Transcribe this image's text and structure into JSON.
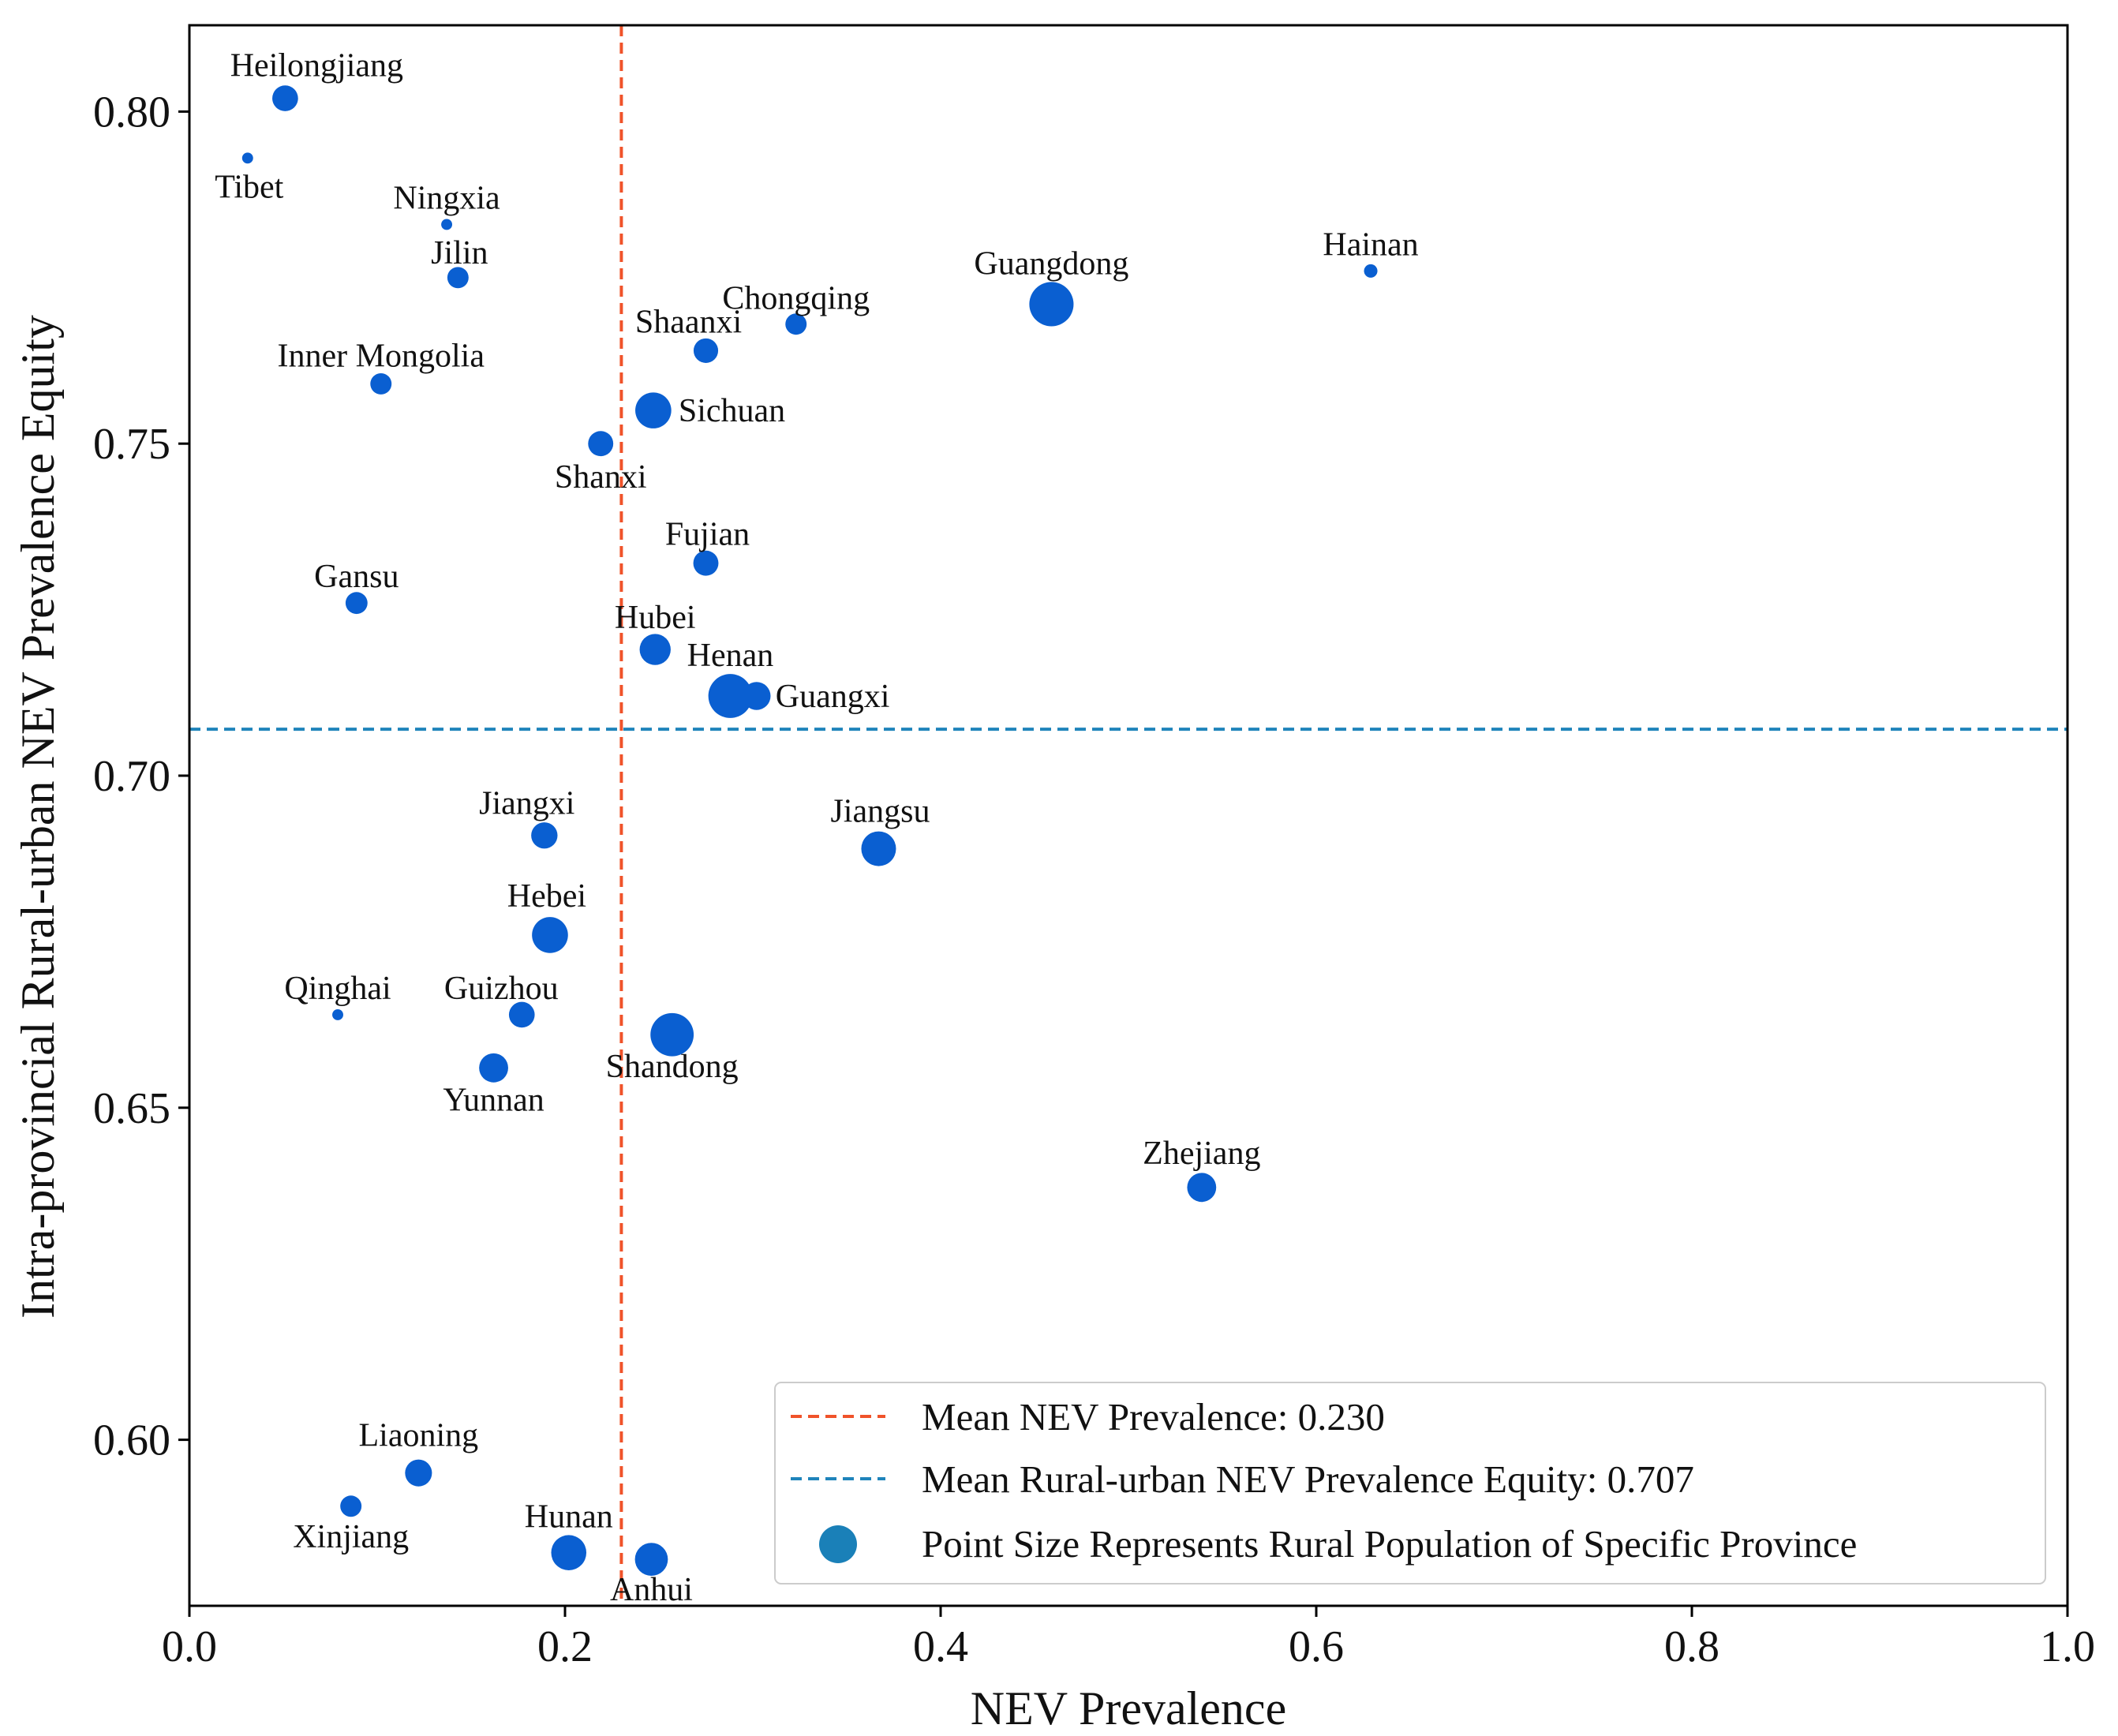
{
  "chart_data": {
    "type": "scatter",
    "title": "",
    "xlabel": "NEV Prevalence",
    "ylabel": "Intra-provincial Rural-urban NEV Prevalence Equity",
    "xlim": [
      0.0,
      1.0
    ],
    "ylim": [
      0.575,
      0.813
    ],
    "xticks": [
      "0.0",
      "0.2",
      "0.4",
      "0.6",
      "0.8",
      "1.0"
    ],
    "yticks": [
      "0.60",
      "0.65",
      "0.70",
      "0.75",
      "0.80"
    ],
    "point_color": "#0a5fd1",
    "size_meaning": "Rural population of province (relative)",
    "points": [
      {
        "name": "Heilongjiang",
        "x": 0.051,
        "y": 0.802,
        "size": 2.2
      },
      {
        "name": "Tibet",
        "x": 0.031,
        "y": 0.793,
        "size": 0.4
      },
      {
        "name": "Ningxia",
        "x": 0.137,
        "y": 0.783,
        "size": 0.4
      },
      {
        "name": "Jilin",
        "x": 0.143,
        "y": 0.775,
        "size": 1.5
      },
      {
        "name": "Inner Mongolia",
        "x": 0.102,
        "y": 0.759,
        "size": 1.5
      },
      {
        "name": "Hainan",
        "x": 0.629,
        "y": 0.776,
        "size": 0.6
      },
      {
        "name": "Guangdong",
        "x": 0.459,
        "y": 0.771,
        "size": 6.5
      },
      {
        "name": "Chongqing",
        "x": 0.323,
        "y": 0.768,
        "size": 1.5
      },
      {
        "name": "Shaanxi",
        "x": 0.275,
        "y": 0.764,
        "size": 2.0
      },
      {
        "name": "Sichuan",
        "x": 0.247,
        "y": 0.755,
        "size": 4.3
      },
      {
        "name": "Shanxi",
        "x": 0.219,
        "y": 0.75,
        "size": 2.1
      },
      {
        "name": "Fujian",
        "x": 0.275,
        "y": 0.732,
        "size": 2.1
      },
      {
        "name": "Gansu",
        "x": 0.089,
        "y": 0.726,
        "size": 1.6
      },
      {
        "name": "Hubei",
        "x": 0.248,
        "y": 0.719,
        "size": 3.2
      },
      {
        "name": "Henan",
        "x": 0.288,
        "y": 0.712,
        "size": 6.4
      },
      {
        "name": "Guangxi",
        "x": 0.302,
        "y": 0.712,
        "size": 2.6
      },
      {
        "name": "Jiangxi",
        "x": 0.189,
        "y": 0.691,
        "size": 2.3
      },
      {
        "name": "Jiangsu",
        "x": 0.367,
        "y": 0.689,
        "size": 4.0
      },
      {
        "name": "Hebei",
        "x": 0.192,
        "y": 0.676,
        "size": 4.3
      },
      {
        "name": "Qinghai",
        "x": 0.079,
        "y": 0.664,
        "size": 0.4
      },
      {
        "name": "Guizhou",
        "x": 0.177,
        "y": 0.664,
        "size": 2.2
      },
      {
        "name": "Shandong",
        "x": 0.257,
        "y": 0.661,
        "size": 6.2
      },
      {
        "name": "Yunnan",
        "x": 0.162,
        "y": 0.656,
        "size": 2.8
      },
      {
        "name": "Zhejiang",
        "x": 0.539,
        "y": 0.638,
        "size": 2.8
      },
      {
        "name": "Liaoning",
        "x": 0.122,
        "y": 0.595,
        "size": 2.4
      },
      {
        "name": "Xinjiang",
        "x": 0.086,
        "y": 0.59,
        "size": 1.5
      },
      {
        "name": "Hunan",
        "x": 0.202,
        "y": 0.583,
        "size": 4.1
      },
      {
        "name": "Anhui",
        "x": 0.246,
        "y": 0.582,
        "size": 3.6
      }
    ],
    "reference_lines": [
      {
        "orientation": "vertical",
        "value": 0.23,
        "color": "#f0532a",
        "style": "dashed"
      },
      {
        "orientation": "horizontal",
        "value": 0.707,
        "color": "#1f84bb",
        "style": "dashed"
      }
    ],
    "legend": {
      "placement": "bottom-right",
      "entries": [
        {
          "label": "Mean NEV Prevalence: 0.230",
          "marker": "dashed-line",
          "color": "#f0532a"
        },
        {
          "label": "Mean Rural-urban NEV Prevalence Equity: 0.707",
          "marker": "dashed-line",
          "color": "#1f84bb"
        },
        {
          "label": "Point Size Represents Rural Population of Specific Province",
          "marker": "circle",
          "color": "#1a80b8"
        }
      ]
    }
  }
}
